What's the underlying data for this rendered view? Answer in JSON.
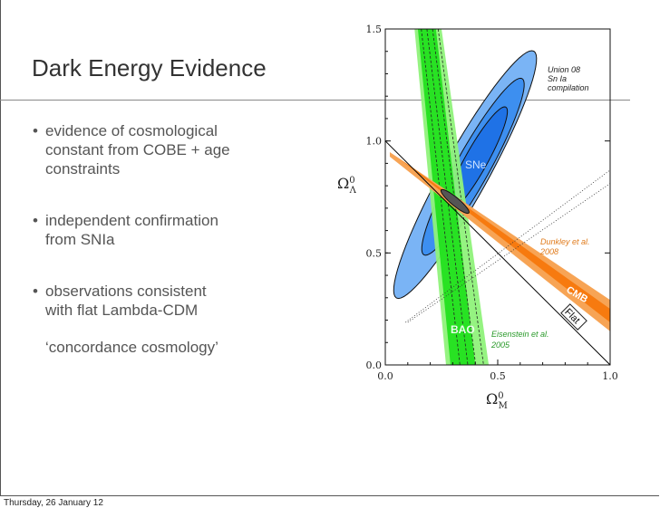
{
  "slide": {
    "title": "Dark Energy Evidence",
    "bullets": [
      {
        "lines": [
          "evidence of cosmological",
          "constant from COBE + age",
          "constraints"
        ]
      },
      {
        "lines": [
          "independent confirmation",
          "from SNIa"
        ]
      },
      {
        "lines": [
          "observations consistent",
          "with flat Lambda-CDM"
        ],
        "sub": "‘concordance cosmology’"
      }
    ],
    "bullet_symbol": "•",
    "footer": "Thursday, 26 January 12"
  },
  "chart_data": {
    "type": "contour",
    "xlabel": "Ω",
    "xlabel_sup": "0",
    "xlabel_sub": "M",
    "ylabel": "Ω",
    "ylabel_sup": "0",
    "ylabel_sub": "Λ",
    "xlim": [
      0,
      1.0
    ],
    "ylim": [
      0,
      1.5
    ],
    "xticks": [
      "0.0",
      "0.5",
      "1.0"
    ],
    "yticks": [
      "0.0",
      "0.5",
      "1.0",
      "1.5"
    ],
    "xtick_values": [
      0,
      0.5,
      1.0
    ],
    "ytick_values": [
      0,
      0.5,
      1.0,
      1.5
    ],
    "colors": {
      "sne_outer": "#7ab4f5",
      "sne_mid": "#3d8ff0",
      "sne_inner": "#1f72e6",
      "bao_outer": "#8ff27a",
      "bao_inner": "#22e01e",
      "cmb_outer": "#f7a455",
      "cmb_inner": "#f77a0f",
      "combined": "#555555"
    },
    "sne": {
      "label": "SNe",
      "ellipses": [
        {
          "level": "outer",
          "center": [
            0.355,
            0.85
          ],
          "a": 0.63,
          "b": 0.1,
          "angle_deg": 61
        },
        {
          "level": "mid",
          "center": [
            0.39,
            0.885
          ],
          "a": 0.45,
          "b": 0.075,
          "angle_deg": 61
        },
        {
          "level": "inner",
          "center": [
            0.405,
            0.915
          ],
          "a": 0.27,
          "b": 0.05,
          "angle_deg": 61
        }
      ]
    },
    "bao": {
      "label": "BAO",
      "outer": [
        [
          0.13,
          1.5
        ],
        [
          0.25,
          1.5
        ],
        [
          0.46,
          0.0
        ],
        [
          0.27,
          0.0
        ]
      ],
      "inner": [
        [
          0.145,
          1.5
        ],
        [
          0.225,
          1.5
        ],
        [
          0.4,
          0.0
        ],
        [
          0.29,
          0.0
        ]
      ]
    },
    "cmb": {
      "label": "CMB",
      "outer": [
        [
          0.02,
          0.95
        ],
        [
          1.0,
          0.29
        ],
        [
          1.0,
          0.15
        ],
        [
          0.02,
          0.93
        ]
      ],
      "inner": [
        [
          0.05,
          0.93
        ],
        [
          1.0,
          0.25
        ],
        [
          1.0,
          0.19
        ]
      ]
    },
    "combined": {
      "center": [
        0.31,
        0.73
      ],
      "a": 0.08,
      "b": 0.018,
      "angle_deg": -40
    },
    "flat": {
      "label": "Flat",
      "from": [
        0.0,
        1.0
      ],
      "to": [
        1.0,
        0.0
      ]
    },
    "dotted_lines": [
      [
        [
          0.09,
          0.19
        ],
        [
          1.0,
          0.87
        ]
      ],
      [
        [
          0.1,
          0.19
        ],
        [
          1.0,
          0.81
        ]
      ]
    ],
    "annotations": [
      {
        "lines": [
          "Union 08",
          "Sn Ia",
          "compilation"
        ]
      },
      {
        "lines": [
          "Dunkley et al.",
          "2008"
        ]
      },
      {
        "lines": [
          "Eisenstein et al.",
          "2005"
        ]
      }
    ]
  }
}
